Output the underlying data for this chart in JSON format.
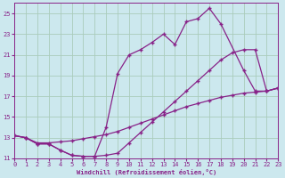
{
  "xlabel": "Windchill (Refroidissement éolien,°C)",
  "bg_color": "#cce8ee",
  "grid_color": "#aaccbb",
  "line_color": "#882288",
  "xlim": [
    0,
    23
  ],
  "ylim": [
    11,
    26
  ],
  "xticks": [
    0,
    1,
    2,
    3,
    4,
    5,
    6,
    7,
    8,
    9,
    10,
    11,
    12,
    13,
    14,
    15,
    16,
    17,
    18,
    19,
    20,
    21,
    22,
    23
  ],
  "yticks": [
    11,
    13,
    15,
    17,
    19,
    21,
    23,
    25
  ],
  "line1": {
    "x": [
      0,
      1,
      2,
      3,
      4,
      5,
      6,
      7,
      8,
      9,
      10,
      11,
      12,
      13,
      14,
      15,
      16,
      17,
      18,
      19,
      20,
      21,
      22,
      23
    ],
    "y": [
      13.2,
      13.0,
      12.5,
      12.5,
      12.6,
      12.7,
      12.9,
      13.1,
      13.3,
      13.6,
      14.0,
      14.4,
      14.8,
      15.2,
      15.6,
      16.0,
      16.3,
      16.6,
      16.9,
      17.1,
      17.3,
      17.4,
      17.5,
      17.8
    ]
  },
  "line2": {
    "x": [
      0,
      1,
      2,
      3,
      4,
      5,
      6,
      7,
      8,
      9,
      10,
      11,
      12,
      13,
      14,
      15,
      16,
      17,
      18,
      19,
      20,
      21,
      22,
      23
    ],
    "y": [
      13.2,
      13.0,
      12.4,
      12.4,
      11.8,
      11.3,
      11.2,
      11.2,
      11.3,
      11.5,
      12.5,
      13.5,
      14.5,
      15.5,
      16.5,
      17.5,
      18.5,
      19.5,
      20.5,
      21.2,
      21.5,
      21.5,
      17.5,
      17.8
    ]
  },
  "line3": {
    "x": [
      0,
      1,
      2,
      3,
      4,
      5,
      6,
      7,
      8,
      9,
      10,
      11,
      12,
      13,
      14,
      15,
      16,
      17,
      18,
      20,
      21,
      22,
      23
    ],
    "y": [
      13.2,
      13.0,
      12.4,
      12.4,
      11.8,
      11.3,
      11.2,
      11.2,
      14.0,
      19.2,
      21.0,
      21.5,
      22.2,
      23.0,
      22.0,
      24.2,
      24.5,
      25.5,
      24.0,
      19.5,
      17.5,
      17.5,
      17.8
    ]
  }
}
